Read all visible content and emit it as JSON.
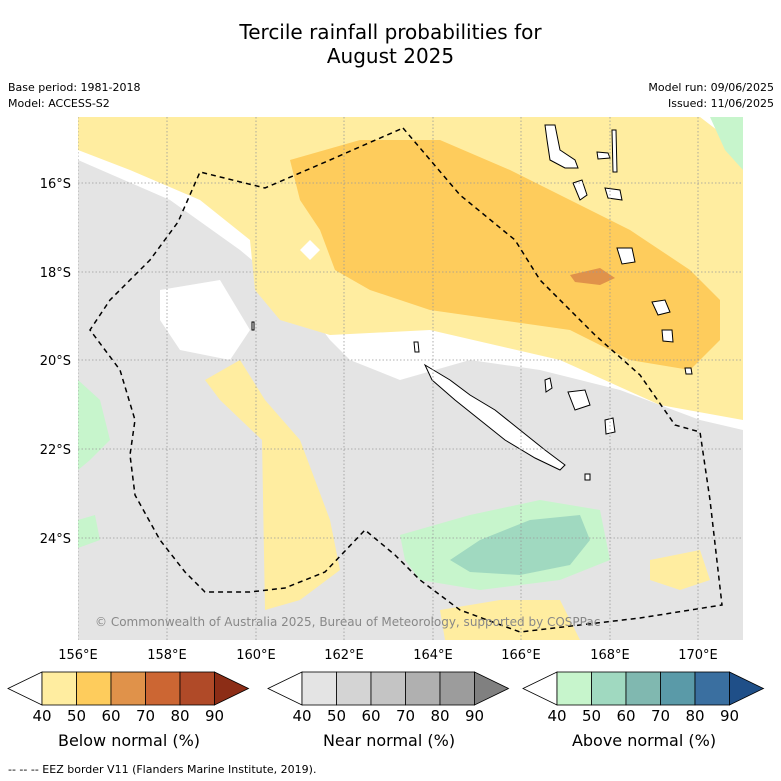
{
  "title_line1": "Tercile rainfall probabilities for",
  "title_line2": "August 2025",
  "base_period": "Base period: 1981-2018",
  "model": "Model: ACCESS-S2",
  "model_run": "Model run: 09/06/2025",
  "issued": "Issued: 11/06/2025",
  "copyright": "© Commonwealth of Australia 2025, Bureau of Meteorology, supported by COSPPac",
  "lat_ticks": [
    "16°S",
    "18°S",
    "20°S",
    "22°S",
    "24°S"
  ],
  "lon_ticks": [
    "156°E",
    "158°E",
    "160°E",
    "162°E",
    "164°E",
    "166°E",
    "168°E",
    "170°E"
  ],
  "colorbars": [
    {
      "label": "Below normal (%)",
      "ticks": [
        "40",
        "50",
        "60",
        "70",
        "80",
        "90"
      ],
      "colors": [
        "#ffffff",
        "#ffeda0",
        "#fecc5c",
        "#e0924a",
        "#cc6633",
        "#b04a28",
        "#8c2d16"
      ]
    },
    {
      "label": "Near normal (%)",
      "ticks": [
        "40",
        "50",
        "60",
        "70",
        "80",
        "90"
      ],
      "colors": [
        "#ffffff",
        "#e4e4e4",
        "#d4d4d4",
        "#c4c4c4",
        "#b0b0b0",
        "#9c9c9c",
        "#808080"
      ]
    },
    {
      "label": "Above normal (%)",
      "ticks": [
        "40",
        "50",
        "60",
        "70",
        "80",
        "90"
      ],
      "colors": [
        "#ffffff",
        "#c7f5cc",
        "#a0d9c0",
        "#80b8b0",
        "#5a9aa8",
        "#3a6fa0",
        "#1f4f88"
      ]
    }
  ],
  "footnote": "-- -- -- EEZ border V11 (Flanders Marine Institute, 2019)."
}
